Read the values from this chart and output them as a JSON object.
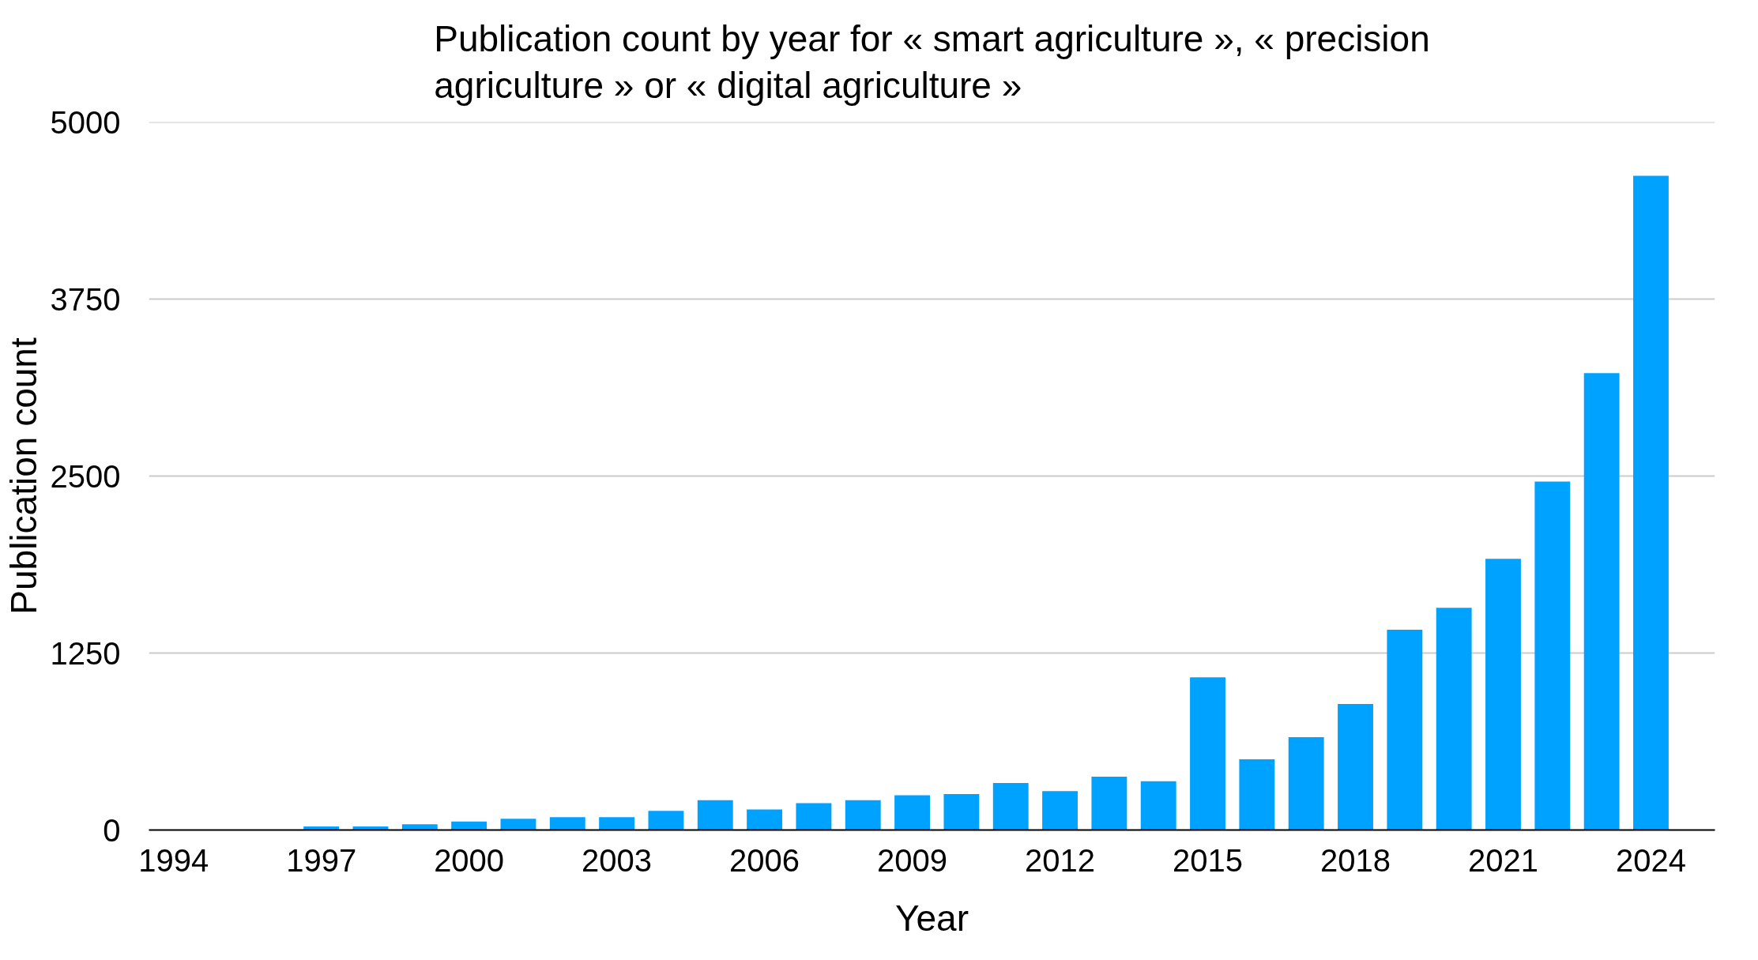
{
  "chart_data": {
    "type": "bar",
    "title": "Publication count by year for « smart agriculture », « precision agriculture » or « digital agriculture »",
    "xlabel": "Year",
    "ylabel": "Publication count",
    "x": [
      1994,
      1995,
      1996,
      1997,
      1998,
      1999,
      2000,
      2001,
      2002,
      2003,
      2004,
      2005,
      2006,
      2007,
      2008,
      2009,
      2010,
      2011,
      2012,
      2013,
      2014,
      2015,
      2016,
      2017,
      2018,
      2019,
      2020,
      2021,
      2022,
      2023,
      2024
    ],
    "values": [
      0,
      0,
      0,
      25,
      25,
      40,
      60,
      80,
      90,
      90,
      135,
      210,
      145,
      190,
      210,
      245,
      254,
      332,
      275,
      377,
      344,
      1078,
      500,
      656,
      890,
      1415,
      1570,
      1915,
      2461,
      3227,
      4621
    ],
    "color": "#00a2ff",
    "xlim": [
      1993.5,
      2025.3
    ],
    "xticks": [
      1994,
      1997,
      2000,
      2003,
      2006,
      2009,
      2012,
      2015,
      2018,
      2021,
      2024
    ],
    "ylim": [
      0,
      5000
    ],
    "yticks": [
      0,
      1250,
      2500,
      3750,
      5000
    ],
    "grid": "y"
  }
}
